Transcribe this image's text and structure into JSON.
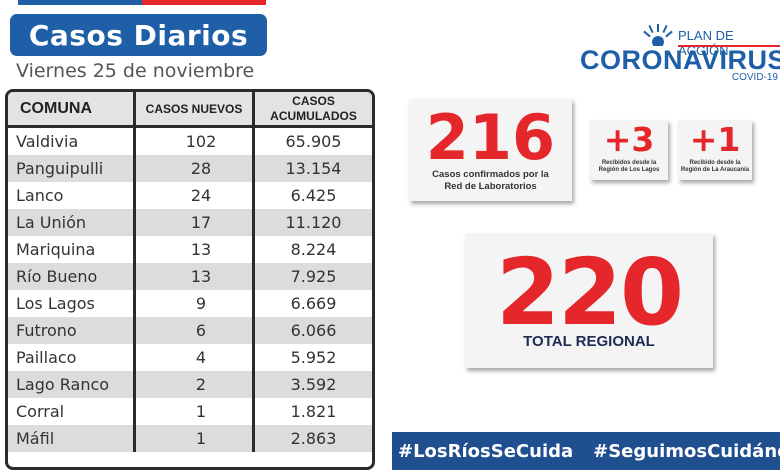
{
  "header": {
    "title": "Casos Diarios",
    "date": "Viernes 25 de noviembre"
  },
  "logo": {
    "plan": "PLAN DE ACCIÓN",
    "main": "CORONAVIRUS",
    "sub": "COVID-19"
  },
  "table": {
    "headers": {
      "comuna": "COMUNA",
      "nuevos": "CASOS NUEVOS",
      "acum_line1": "CASOS",
      "acum_line2": "ACUMULADOS"
    },
    "rows": [
      {
        "comuna": "Valdivia",
        "nuevos": "102",
        "acumulados": "65.905"
      },
      {
        "comuna": "Panguipulli",
        "nuevos": "28",
        "acumulados": "13.154"
      },
      {
        "comuna": "Lanco",
        "nuevos": "24",
        "acumulados": "6.425"
      },
      {
        "comuna": "La Unión",
        "nuevos": "17",
        "acumulados": "11.120"
      },
      {
        "comuna": "Mariquina",
        "nuevos": "13",
        "acumulados": "8.224"
      },
      {
        "comuna": "Río Bueno",
        "nuevos": "13",
        "acumulados": "7.925"
      },
      {
        "comuna": "Los Lagos",
        "nuevos": "9",
        "acumulados": "6.669"
      },
      {
        "comuna": "Futrono",
        "nuevos": "6",
        "acumulados": "6.066"
      },
      {
        "comuna": "Paillaco",
        "nuevos": "4",
        "acumulados": "5.952"
      },
      {
        "comuna": "Lago Ranco",
        "nuevos": "2",
        "acumulados": "3.592"
      },
      {
        "comuna": "Corral",
        "nuevos": "1",
        "acumulados": "1.821"
      },
      {
        "comuna": "Máfil",
        "nuevos": "1",
        "acumulados": "2.863"
      }
    ]
  },
  "stats": {
    "confirmados": {
      "value": "216",
      "label_line1": "Casos confirmados por la",
      "label_line2": "Red de Laboratorios"
    },
    "los_lagos": {
      "value": "+3",
      "label_line1": "Recibidos desde la",
      "label_line2": "Región de Los Lagos"
    },
    "araucania": {
      "value": "+1",
      "label_line1": "Recibido desde la",
      "label_line2": "Región de La Araucanía"
    },
    "total": {
      "value": "220",
      "label": "TOTAL REGIONAL"
    }
  },
  "hashtags": [
    "#LosRíosSeCuida",
    "#SeguimosCuidándonos"
  ],
  "colors": {
    "brand_blue": "#1f5fa8",
    "accent_red": "#e5262a",
    "hashtag_bar": "#1f4f8f"
  }
}
